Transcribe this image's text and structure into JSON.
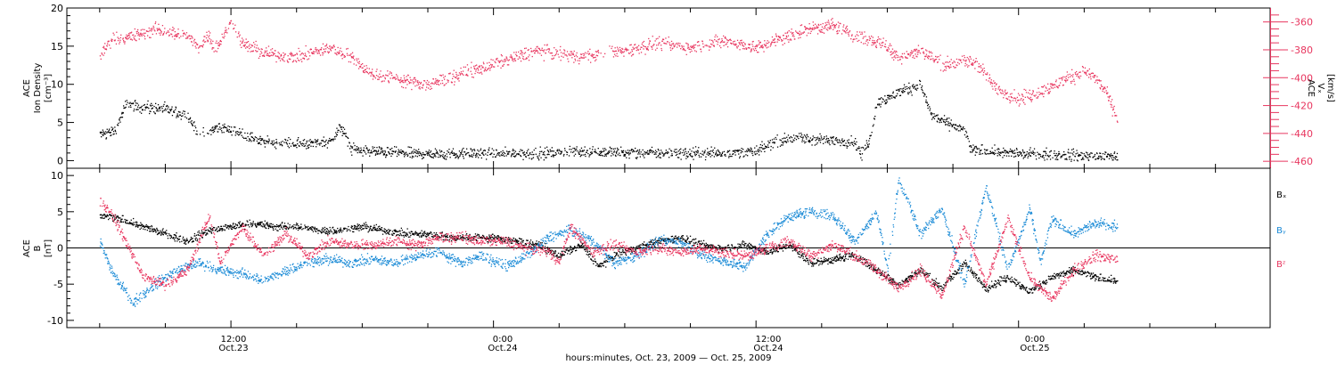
{
  "chart_data": [
    {
      "type": "scatter",
      "panel": "top",
      "ylabel": {
        "instrument": "ACE",
        "quantity": "Ion Density",
        "unit": "[cm⁻³]"
      },
      "y2label": {
        "instrument": "ACE",
        "quantity": "Vₓ",
        "unit": "[km/s]"
      },
      "ylim": [
        -1,
        20
      ],
      "y2lim": [
        -465,
        -350
      ],
      "yticks": [
        "0",
        "5",
        "10",
        "15",
        "20"
      ],
      "y2ticks": [
        "-360",
        "-380",
        "-400",
        "-420",
        "-440",
        "-460"
      ],
      "series": [
        {
          "name": "Ion Density",
          "axis": "left",
          "color": "#000000",
          "noise": 0.6,
          "density": 5,
          "gap_end": 10.5,
          "points": [
            [
              6,
              3.5
            ],
            [
              6.7,
              4.0
            ],
            [
              7.2,
              7.5
            ],
            [
              8.0,
              7.0
            ],
            [
              9.0,
              6.8
            ],
            [
              10.0,
              6.0
            ],
            [
              10.5,
              3.5
            ],
            [
              11.5,
              4.5
            ],
            [
              12.5,
              3.5
            ],
            [
              13.5,
              2.5
            ],
            [
              15.0,
              2.2
            ],
            [
              16.5,
              2.5
            ],
            [
              17.0,
              4.5
            ],
            [
              17.5,
              1.5
            ],
            [
              20.0,
              1.0
            ],
            [
              24.0,
              1.0
            ],
            [
              26.0,
              1.0
            ],
            [
              28.0,
              1.3
            ],
            [
              32.0,
              1.0
            ],
            [
              36.0,
              1.2
            ],
            [
              36.8,
              2.5
            ],
            [
              37.5,
              3.0
            ],
            [
              39.0,
              2.8
            ],
            [
              40.5,
              2.5
            ],
            [
              40.8,
              0.8
            ],
            [
              41.2,
              3.0
            ],
            [
              41.5,
              7.5
            ],
            [
              42.5,
              9.0
            ],
            [
              43.5,
              10.0
            ],
            [
              44.0,
              6.0
            ],
            [
              45.5,
              4.0
            ],
            [
              45.8,
              1.5
            ],
            [
              48.0,
              1.0
            ],
            [
              50.0,
              0.8
            ],
            [
              51.0,
              0.7
            ],
            [
              52.5,
              0.6
            ]
          ]
        },
        {
          "name": "Vx",
          "axis": "right",
          "color": "#e8365f",
          "noise": 4,
          "density": 5,
          "gap_end": 28.8,
          "points": [
            [
              6,
              -385
            ],
            [
              6.5,
              -372
            ],
            [
              7.5,
              -370
            ],
            [
              8.5,
              -365
            ],
            [
              10.0,
              -370
            ],
            [
              10.5,
              -378
            ],
            [
              11.0,
              -368
            ],
            [
              12.0,
              -360
            ],
            [
              11.2,
              -380
            ],
            [
              12.5,
              -375
            ],
            [
              13.5,
              -382
            ],
            [
              15.0,
              -385
            ],
            [
              16.5,
              -378
            ],
            [
              17.5,
              -385
            ],
            [
              18.5,
              -398
            ],
            [
              19.5,
              -400
            ],
            [
              21.0,
              -405
            ],
            [
              22.5,
              -397
            ],
            [
              24.0,
              -390
            ],
            [
              25.0,
              -385
            ],
            [
              26.0,
              -380
            ],
            [
              27.0,
              -383
            ],
            [
              28.0,
              -385
            ],
            [
              30.0,
              -380
            ],
            [
              31.5,
              -375
            ],
            [
              33.0,
              -378
            ],
            [
              34.5,
              -373
            ],
            [
              36.0,
              -378
            ],
            [
              37.0,
              -372
            ],
            [
              38.5,
              -364
            ],
            [
              39.5,
              -362
            ],
            [
              40.5,
              -370
            ],
            [
              41.8,
              -375
            ],
            [
              42.5,
              -385
            ],
            [
              43.5,
              -380
            ],
            [
              44.5,
              -390
            ],
            [
              46.0,
              -388
            ],
            [
              47.0,
              -408
            ],
            [
              48.0,
              -415
            ],
            [
              49.0,
              -410
            ],
            [
              50.0,
              -402
            ],
            [
              51.0,
              -395
            ],
            [
              51.5,
              -400
            ],
            [
              52.0,
              -410
            ],
            [
              52.5,
              -430
            ]
          ]
        }
      ]
    },
    {
      "type": "scatter",
      "panel": "bottom",
      "ylabel": {
        "instrument": "ACE",
        "quantity": "B",
        "unit": "[nT]"
      },
      "ylim": [
        -11,
        11
      ],
      "yticks": [
        "-10",
        "-5",
        "0",
        "5",
        "10"
      ],
      "zero_line": true,
      "series": [
        {
          "name": "Bₓ",
          "axis": "left",
          "color": "#000000",
          "noise": 0.45,
          "density": 6,
          "points": [
            [
              6,
              4.5
            ],
            [
              7,
              4.0
            ],
            [
              8,
              3.0
            ],
            [
              9,
              2.0
            ],
            [
              10,
              1.0
            ],
            [
              11,
              2.5
            ],
            [
              12,
              3.0
            ],
            [
              13,
              3.5
            ],
            [
              14,
              3.0
            ],
            [
              15,
              3.0
            ],
            [
              16,
              2.5
            ],
            [
              17,
              2.5
            ],
            [
              18,
              3.0
            ],
            [
              19,
              2.5
            ],
            [
              20,
              2.0
            ],
            [
              21,
              2.0
            ],
            [
              22,
              1.5
            ],
            [
              23,
              1.5
            ],
            [
              24,
              1.5
            ],
            [
              25,
              1.0
            ],
            [
              26,
              0.5
            ],
            [
              27,
              -1.0
            ],
            [
              28,
              0.5
            ],
            [
              28.8,
              -2.5
            ],
            [
              29.5,
              -1.0
            ],
            [
              30.5,
              0.0
            ],
            [
              31.5,
              1.0
            ],
            [
              32.5,
              1.5
            ],
            [
              33.5,
              0.5
            ],
            [
              34.5,
              0.0
            ],
            [
              35.5,
              0.5
            ],
            [
              36.5,
              -0.5
            ],
            [
              37.5,
              0.5
            ],
            [
              38.5,
              -2.0
            ],
            [
              39.5,
              -1.5
            ],
            [
              40.5,
              -1.0
            ],
            [
              41.5,
              -3.0
            ],
            [
              42.5,
              -5.0
            ],
            [
              43.5,
              -3.0
            ],
            [
              44.5,
              -5.5
            ],
            [
              45.5,
              -2.0
            ],
            [
              46.5,
              -5.5
            ],
            [
              47.5,
              -4.0
            ],
            [
              48.5,
              -6.0
            ],
            [
              49.5,
              -4.0
            ],
            [
              50.5,
              -3.0
            ],
            [
              51.5,
              -4.0
            ],
            [
              52.5,
              -4.5
            ]
          ]
        },
        {
          "name": "Bᵧ",
          "axis": "left",
          "color": "#1a8ad6",
          "noise": 0.6,
          "density": 6,
          "points": [
            [
              6,
              1.0
            ],
            [
              6.5,
              -3.0
            ],
            [
              7.5,
              -7.5
            ],
            [
              8.5,
              -5.0
            ],
            [
              9.5,
              -3.0
            ],
            [
              10.5,
              -2.0
            ],
            [
              11.5,
              -3.0
            ],
            [
              12.5,
              -3.5
            ],
            [
              13.5,
              -4.5
            ],
            [
              14.5,
              -3.0
            ],
            [
              15.5,
              -2.0
            ],
            [
              16.5,
              -1.5
            ],
            [
              17.5,
              -2.0
            ],
            [
              18.5,
              -1.5
            ],
            [
              19.5,
              -2.0
            ],
            [
              20.5,
              -1.0
            ],
            [
              21.5,
              -0.5
            ],
            [
              22.5,
              -2.0
            ],
            [
              23.5,
              -1.0
            ],
            [
              24.5,
              -2.5
            ],
            [
              25.5,
              -1.0
            ],
            [
              26.5,
              1.5
            ],
            [
              27.5,
              2.5
            ],
            [
              28.5,
              1.0
            ],
            [
              29.5,
              -2.0
            ],
            [
              30.5,
              -1.0
            ],
            [
              31.5,
              1.0
            ],
            [
              32.5,
              1.0
            ],
            [
              33.5,
              -1.0
            ],
            [
              35.5,
              -2.5
            ],
            [
              36.5,
              2.0
            ],
            [
              37.5,
              4.5
            ],
            [
              38.5,
              5.0
            ],
            [
              39.5,
              4.5
            ],
            [
              40.5,
              1.0
            ],
            [
              41.5,
              5.0
            ],
            [
              42.0,
              -3.0
            ],
            [
              42.5,
              9.5
            ],
            [
              43.5,
              2.0
            ],
            [
              44.5,
              5.5
            ],
            [
              45.5,
              -5.0
            ],
            [
              46.5,
              8.5
            ],
            [
              47.5,
              -3.0
            ],
            [
              48.5,
              5.5
            ],
            [
              49.0,
              -2.0
            ],
            [
              49.5,
              4.0
            ],
            [
              50.5,
              2.0
            ],
            [
              51.5,
              3.5
            ],
            [
              52.5,
              3.0
            ]
          ]
        },
        {
          "name": "Bᶻ",
          "axis": "left",
          "color": "#e8365f",
          "noise": 0.6,
          "density": 6,
          "points": [
            [
              6,
              6.5
            ],
            [
              6.5,
              5.0
            ],
            [
              7.0,
              2.0
            ],
            [
              8.0,
              -4.0
            ],
            [
              9.0,
              -5.0
            ],
            [
              10.0,
              -3.0
            ],
            [
              11.0,
              4.5
            ],
            [
              11.5,
              -2.0
            ],
            [
              12.5,
              3.0
            ],
            [
              13.5,
              -1.0
            ],
            [
              14.5,
              2.0
            ],
            [
              15.5,
              -1.0
            ],
            [
              16.5,
              1.0
            ],
            [
              17.5,
              0.5
            ],
            [
              18.5,
              0.5
            ],
            [
              19.5,
              1.0
            ],
            [
              20.5,
              0.5
            ],
            [
              21.5,
              1.5
            ],
            [
              22.5,
              1.5
            ],
            [
              23.5,
              1.0
            ],
            [
              24.5,
              1.0
            ],
            [
              25.5,
              0.0
            ],
            [
              26.5,
              -0.5
            ],
            [
              27.0,
              -2.0
            ],
            [
              27.5,
              3.0
            ],
            [
              28.5,
              -0.5
            ],
            [
              29.5,
              0.5
            ],
            [
              30.5,
              -0.5
            ],
            [
              31.5,
              0.0
            ],
            [
              32.5,
              -0.5
            ],
            [
              33.5,
              0.0
            ],
            [
              34.5,
              -0.5
            ],
            [
              35.5,
              -1.0
            ],
            [
              36.5,
              0.0
            ],
            [
              37.5,
              1.0
            ],
            [
              38.5,
              -1.0
            ],
            [
              39.5,
              0.5
            ],
            [
              40.5,
              -1.0
            ],
            [
              41.5,
              -3.0
            ],
            [
              42.5,
              -5.5
            ],
            [
              43.5,
              -3.0
            ],
            [
              44.5,
              -6.5
            ],
            [
              45.5,
              3.0
            ],
            [
              46.5,
              -5.0
            ],
            [
              47.5,
              4.0
            ],
            [
              48.5,
              -4.0
            ],
            [
              49.5,
              -7.0
            ],
            [
              50.5,
              -3.0
            ],
            [
              51.5,
              -1.0
            ],
            [
              52.5,
              -1.5
            ]
          ]
        }
      ]
    }
  ],
  "x_axis": {
    "range_hours": [
      4.5,
      59.5
    ],
    "ticks": [
      {
        "hour": 12,
        "time": "12:00",
        "date": "Oct.23"
      },
      {
        "hour": 24,
        "time": "0:00",
        "date": "Oct.24"
      },
      {
        "hour": 36,
        "time": "12:00",
        "date": "Oct.24"
      },
      {
        "hour": 48,
        "time": "0:00",
        "date": "Oct.25"
      }
    ],
    "label": "hours:minutes, Oct. 23, 2009 — Oct. 25, 2009"
  },
  "legend": {
    "items": [
      {
        "text": "Bₓ",
        "color": "#000000"
      },
      {
        "text": "Bᵧ",
        "color": "#1a8ad6"
      },
      {
        "text": "Bᶻ",
        "color": "#e8365f"
      }
    ]
  },
  "colors": {
    "axes": "#000000",
    "right_axis": "#e8365f",
    "by": "#1a8ad6",
    "bz": "#e8365f",
    "bx": "#000000"
  }
}
